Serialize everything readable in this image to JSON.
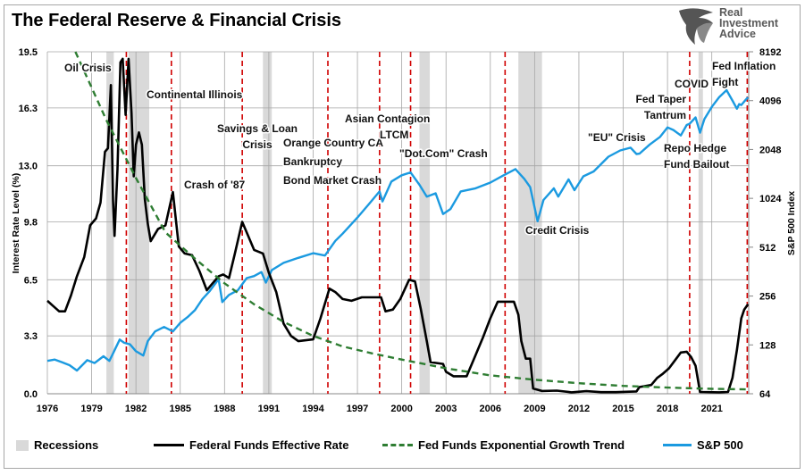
{
  "title": "The Federal Reserve & Financial Crisis",
  "logo": {
    "line1": "Real",
    "line2": "Investment",
    "line3": "Advice"
  },
  "colors": {
    "recession": "#d9d9d9",
    "fed_funds": "#000000",
    "trend": "#2e7d32",
    "sp500": "#1b9ae0",
    "crisis_line": "#d00000",
    "grid": "#a6a6a6"
  },
  "chart_data": {
    "type": "line",
    "title": "The Federal Reserve & Financial Crisis",
    "xlabel": "",
    "ylabel": "Interest Rate Level (%)",
    "y2label": "S&P 500 Index",
    "xlim": [
      1976,
      2023.5
    ],
    "ylim": [
      0,
      19.5
    ],
    "y2lim": [
      64,
      8192
    ],
    "y2scale": "log2",
    "grid": true,
    "legend_placement": "bottom",
    "x_ticks": [
      "1976",
      "1979",
      "1982",
      "1985",
      "1988",
      "1991",
      "1994",
      "1997",
      "2000",
      "2003",
      "2006",
      "2009",
      "2012",
      "2015",
      "2018",
      "2021"
    ],
    "y_ticks": [
      "0.0",
      "3.3",
      "6.5",
      "9.8",
      "13.0",
      "16.3",
      "19.5"
    ],
    "y2_ticks": [
      "64",
      "128",
      "256",
      "512",
      "1024",
      "2048",
      "4096",
      "8192"
    ],
    "legend": [
      "Recessions",
      "Federal Funds Effective Rate",
      "Fed Funds Exponential Growth Trend",
      "S&P 500"
    ],
    "recessions": [
      [
        1980.0,
        1980.5
      ],
      [
        1981.5,
        1982.9
      ],
      [
        1990.6,
        1991.2
      ],
      [
        2001.2,
        2001.9
      ],
      [
        2007.9,
        2009.5
      ],
      [
        2020.1,
        2020.4
      ]
    ],
    "crisis_lines": [
      1981.35,
      1984.4,
      1989.2,
      1995.0,
      1998.5,
      2000.6,
      2007.0,
      2019.5,
      2023.4
    ],
    "annotations": [
      {
        "text": [
          "Oil Crisis"
        ]
      },
      {
        "text": [
          "Continental Illinois"
        ]
      },
      {
        "text": [
          "Savings & Loan",
          "Crisis"
        ]
      },
      {
        "text": [
          "Orange Country CA",
          "Bankruptcy",
          "Bond Market Crash"
        ]
      },
      {
        "text": [
          "Asian Contagion",
          "LTCM"
        ]
      },
      {
        "text": [
          "\"Dot.Com\" Crash"
        ]
      },
      {
        "text": [
          "Crash of '87"
        ]
      },
      {
        "text": [
          "Credit Crisis"
        ]
      },
      {
        "text": [
          "\"EU\" Crisis"
        ]
      },
      {
        "text": [
          "Fed Taper",
          "Tantrum"
        ]
      },
      {
        "text": [
          "COVID"
        ]
      },
      {
        "text": [
          "Fed Inflation",
          "Fight"
        ]
      },
      {
        "text": [
          "Repo Hedge",
          "Fund Bailout"
        ]
      }
    ],
    "series": [
      {
        "name": "Federal Funds Effective Rate",
        "axis": "left",
        "points": [
          [
            1976,
            5.3
          ],
          [
            1976.4,
            5.0
          ],
          [
            1976.8,
            4.7
          ],
          [
            1977.2,
            4.7
          ],
          [
            1977.6,
            5.6
          ],
          [
            1978,
            6.7
          ],
          [
            1978.5,
            7.8
          ],
          [
            1978.9,
            9.6
          ],
          [
            1979.3,
            10.0
          ],
          [
            1979.6,
            10.9
          ],
          [
            1979.9,
            13.8
          ],
          [
            1980.1,
            14.0
          ],
          [
            1980.3,
            17.6
          ],
          [
            1980.45,
            11.0
          ],
          [
            1980.55,
            9.0
          ],
          [
            1980.75,
            12.8
          ],
          [
            1980.95,
            18.9
          ],
          [
            1981.1,
            19.1
          ],
          [
            1981.3,
            15.9
          ],
          [
            1981.5,
            19.1
          ],
          [
            1981.7,
            16.0
          ],
          [
            1981.85,
            12.4
          ],
          [
            1982.0,
            14.2
          ],
          [
            1982.2,
            14.9
          ],
          [
            1982.4,
            14.2
          ],
          [
            1982.6,
            11.1
          ],
          [
            1982.8,
            9.7
          ],
          [
            1983.0,
            8.7
          ],
          [
            1983.5,
            9.4
          ],
          [
            1984.0,
            9.6
          ],
          [
            1984.5,
            11.5
          ],
          [
            1984.9,
            8.4
          ],
          [
            1985.3,
            8.0
          ],
          [
            1985.8,
            7.9
          ],
          [
            1986.3,
            7.0
          ],
          [
            1986.8,
            5.9
          ],
          [
            1987.1,
            6.2
          ],
          [
            1987.6,
            6.7
          ],
          [
            1987.9,
            6.8
          ],
          [
            1988.3,
            6.6
          ],
          [
            1988.7,
            8.0
          ],
          [
            1989.2,
            9.8
          ],
          [
            1989.6,
            9.0
          ],
          [
            1990.0,
            8.2
          ],
          [
            1990.6,
            8.0
          ],
          [
            1991.0,
            6.9
          ],
          [
            1991.5,
            5.8
          ],
          [
            1992.0,
            4.0
          ],
          [
            1992.5,
            3.3
          ],
          [
            1993.0,
            3.0
          ],
          [
            1994.0,
            3.1
          ],
          [
            1994.5,
            4.3
          ],
          [
            1995.1,
            6.0
          ],
          [
            1995.5,
            5.8
          ],
          [
            1996.0,
            5.4
          ],
          [
            1996.6,
            5.3
          ],
          [
            1997.3,
            5.5
          ],
          [
            1998.6,
            5.5
          ],
          [
            1998.9,
            4.7
          ],
          [
            1999.4,
            4.8
          ],
          [
            1999.9,
            5.4
          ],
          [
            2000.5,
            6.5
          ],
          [
            2000.9,
            6.4
          ],
          [
            2001.3,
            4.8
          ],
          [
            2001.7,
            3.0
          ],
          [
            2001.95,
            1.8
          ],
          [
            2002.8,
            1.7
          ],
          [
            2003.0,
            1.25
          ],
          [
            2003.5,
            1.0
          ],
          [
            2004.4,
            1.0
          ],
          [
            2004.9,
            2.0
          ],
          [
            2005.5,
            3.2
          ],
          [
            2006.0,
            4.3
          ],
          [
            2006.5,
            5.25
          ],
          [
            2007.6,
            5.25
          ],
          [
            2007.9,
            4.5
          ],
          [
            2008.1,
            3.0
          ],
          [
            2008.4,
            2.0
          ],
          [
            2008.7,
            2.0
          ],
          [
            2008.9,
            0.3
          ],
          [
            2009.5,
            0.16
          ],
          [
            2010.5,
            0.18
          ],
          [
            2011.5,
            0.08
          ],
          [
            2012.5,
            0.15
          ],
          [
            2013.5,
            0.09
          ],
          [
            2014.5,
            0.09
          ],
          [
            2015.9,
            0.13
          ],
          [
            2016.1,
            0.38
          ],
          [
            2016.9,
            0.5
          ],
          [
            2017.3,
            0.9
          ],
          [
            2017.7,
            1.15
          ],
          [
            2018.1,
            1.45
          ],
          [
            2018.5,
            1.9
          ],
          [
            2018.9,
            2.35
          ],
          [
            2019.3,
            2.4
          ],
          [
            2019.6,
            2.1
          ],
          [
            2019.9,
            1.6
          ],
          [
            2020.2,
            0.1
          ],
          [
            2021.5,
            0.08
          ],
          [
            2022.1,
            0.1
          ],
          [
            2022.4,
            0.9
          ],
          [
            2022.7,
            2.5
          ],
          [
            2023.0,
            4.3
          ],
          [
            2023.2,
            4.8
          ],
          [
            2023.45,
            5.1
          ]
        ]
      },
      {
        "name": "Fed Funds Exponential Growth Trend",
        "axis": "left",
        "points": [
          [
            1977.9,
            19.5
          ],
          [
            1980,
            15.6
          ],
          [
            1982,
            12.3
          ],
          [
            1984,
            9.2
          ],
          [
            1986,
            7.7
          ],
          [
            1988,
            6.3
          ],
          [
            1990,
            5.1
          ],
          [
            1992,
            4.1
          ],
          [
            1994,
            3.3
          ],
          [
            1996,
            2.7
          ],
          [
            1998,
            2.3
          ],
          [
            2000,
            1.95
          ],
          [
            2003,
            1.45
          ],
          [
            2006,
            1.05
          ],
          [
            2009,
            0.8
          ],
          [
            2012,
            0.6
          ],
          [
            2015,
            0.45
          ],
          [
            2018,
            0.35
          ],
          [
            2021,
            0.28
          ],
          [
            2023.5,
            0.25
          ]
        ]
      },
      {
        "name": "S&P 500",
        "axis": "right",
        "points": [
          [
            1976,
            102
          ],
          [
            1976.5,
            104
          ],
          [
            1977,
            100
          ],
          [
            1977.5,
            96
          ],
          [
            1978,
            89
          ],
          [
            1978.7,
            103
          ],
          [
            1979.2,
            99
          ],
          [
            1979.8,
            109
          ],
          [
            1980.2,
            102
          ],
          [
            1980.4,
            111
          ],
          [
            1980.9,
            138
          ],
          [
            1981.2,
            132
          ],
          [
            1981.6,
            129
          ],
          [
            1982.0,
            117
          ],
          [
            1982.5,
            110
          ],
          [
            1982.8,
            135
          ],
          [
            1983.3,
            155
          ],
          [
            1983.9,
            165
          ],
          [
            1984.5,
            155
          ],
          [
            1985.0,
            175
          ],
          [
            1985.5,
            190
          ],
          [
            1986.0,
            210
          ],
          [
            1986.5,
            245
          ],
          [
            1987.0,
            275
          ],
          [
            1987.6,
            325
          ],
          [
            1987.85,
            235
          ],
          [
            1988.3,
            260
          ],
          [
            1988.9,
            278
          ],
          [
            1989.5,
            330
          ],
          [
            1990.0,
            340
          ],
          [
            1990.5,
            360
          ],
          [
            1990.8,
            310
          ],
          [
            1991.2,
            370
          ],
          [
            1992.0,
            410
          ],
          [
            1993.0,
            440
          ],
          [
            1994.0,
            470
          ],
          [
            1994.8,
            455
          ],
          [
            1995.5,
            560
          ],
          [
            1996.0,
            620
          ],
          [
            1997.0,
            780
          ],
          [
            1997.8,
            950
          ],
          [
            1998.5,
            1130
          ],
          [
            1998.7,
            980
          ],
          [
            1999.3,
            1300
          ],
          [
            2000.0,
            1420
          ],
          [
            2000.6,
            1480
          ],
          [
            2001.2,
            1240
          ],
          [
            2001.7,
            1050
          ],
          [
            2002.3,
            1100
          ],
          [
            2002.8,
            820
          ],
          [
            2003.3,
            880
          ],
          [
            2004.0,
            1130
          ],
          [
            2005.0,
            1180
          ],
          [
            2006.0,
            1280
          ],
          [
            2006.9,
            1420
          ],
          [
            2007.7,
            1550
          ],
          [
            2008.3,
            1350
          ],
          [
            2008.7,
            1200
          ],
          [
            2009.2,
            740
          ],
          [
            2009.6,
            1000
          ],
          [
            2010.3,
            1180
          ],
          [
            2010.6,
            1050
          ],
          [
            2011.3,
            1340
          ],
          [
            2011.7,
            1150
          ],
          [
            2012.3,
            1400
          ],
          [
            2013.0,
            1500
          ],
          [
            2014.0,
            1850
          ],
          [
            2014.8,
            2020
          ],
          [
            2015.5,
            2100
          ],
          [
            2015.9,
            1920
          ],
          [
            2016.1,
            1930
          ],
          [
            2016.8,
            2200
          ],
          [
            2017.5,
            2450
          ],
          [
            2018.0,
            2800
          ],
          [
            2018.4,
            2700
          ],
          [
            2018.9,
            2500
          ],
          [
            2019.3,
            2900
          ],
          [
            2019.5,
            2950
          ],
          [
            2019.9,
            3230
          ],
          [
            2020.2,
            2600
          ],
          [
            2020.5,
            3150
          ],
          [
            2021.0,
            3750
          ],
          [
            2021.5,
            4300
          ],
          [
            2022.0,
            4750
          ],
          [
            2022.4,
            4100
          ],
          [
            2022.7,
            3650
          ],
          [
            2022.85,
            3900
          ],
          [
            2023.0,
            3850
          ],
          [
            2023.3,
            4150
          ],
          [
            2023.45,
            4300
          ]
        ]
      }
    ]
  }
}
